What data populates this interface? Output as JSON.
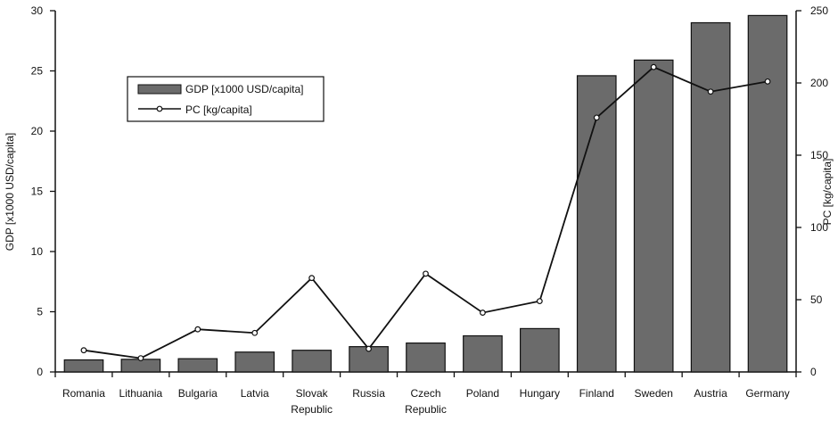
{
  "chart_data": {
    "type": "bar",
    "categories": [
      "Romania",
      "Lithuania",
      "Bulgaria",
      "Latvia",
      "Slovak Republic",
      "Russia",
      "Czech Republic",
      "Poland",
      "Hungary",
      "Finland",
      "Sweden",
      "Austria",
      "Germany"
    ],
    "category_lines": [
      [
        "Romania"
      ],
      [
        "Lithuania"
      ],
      [
        "Bulgaria"
      ],
      [
        "Latvia"
      ],
      [
        "Slovak",
        "Republic"
      ],
      [
        "Russia"
      ],
      [
        "Czech",
        "Republic"
      ],
      [
        "Poland"
      ],
      [
        "Hungary"
      ],
      [
        "Finland"
      ],
      [
        "Sweden"
      ],
      [
        "Austria"
      ],
      [
        "Germany"
      ]
    ],
    "series": [
      {
        "name": "GDP [x1000 USD/capita]",
        "type": "bar",
        "axis": "left",
        "color": "#6b6b6b",
        "values": [
          1.0,
          1.05,
          1.1,
          1.65,
          1.8,
          2.1,
          2.4,
          3.0,
          3.6,
          24.6,
          25.9,
          29.0,
          29.6
        ]
      },
      {
        "name": "PC [kg/capita]",
        "type": "line",
        "axis": "right",
        "color": "#111111",
        "values": [
          15,
          9.5,
          29.5,
          27,
          65,
          16,
          68,
          41,
          49,
          176,
          211,
          194,
          201
        ]
      }
    ],
    "ylabel": "GDP [x1000 USD/capita]",
    "y2label": "PC [kg/capita]",
    "ylim": [
      0,
      30
    ],
    "y2lim": [
      0,
      250
    ],
    "yticks": [
      0,
      5,
      10,
      15,
      20,
      25,
      30
    ],
    "y2ticks": [
      0,
      50,
      100,
      150,
      200,
      250
    ],
    "grid": false,
    "legend_position": "top-left"
  }
}
